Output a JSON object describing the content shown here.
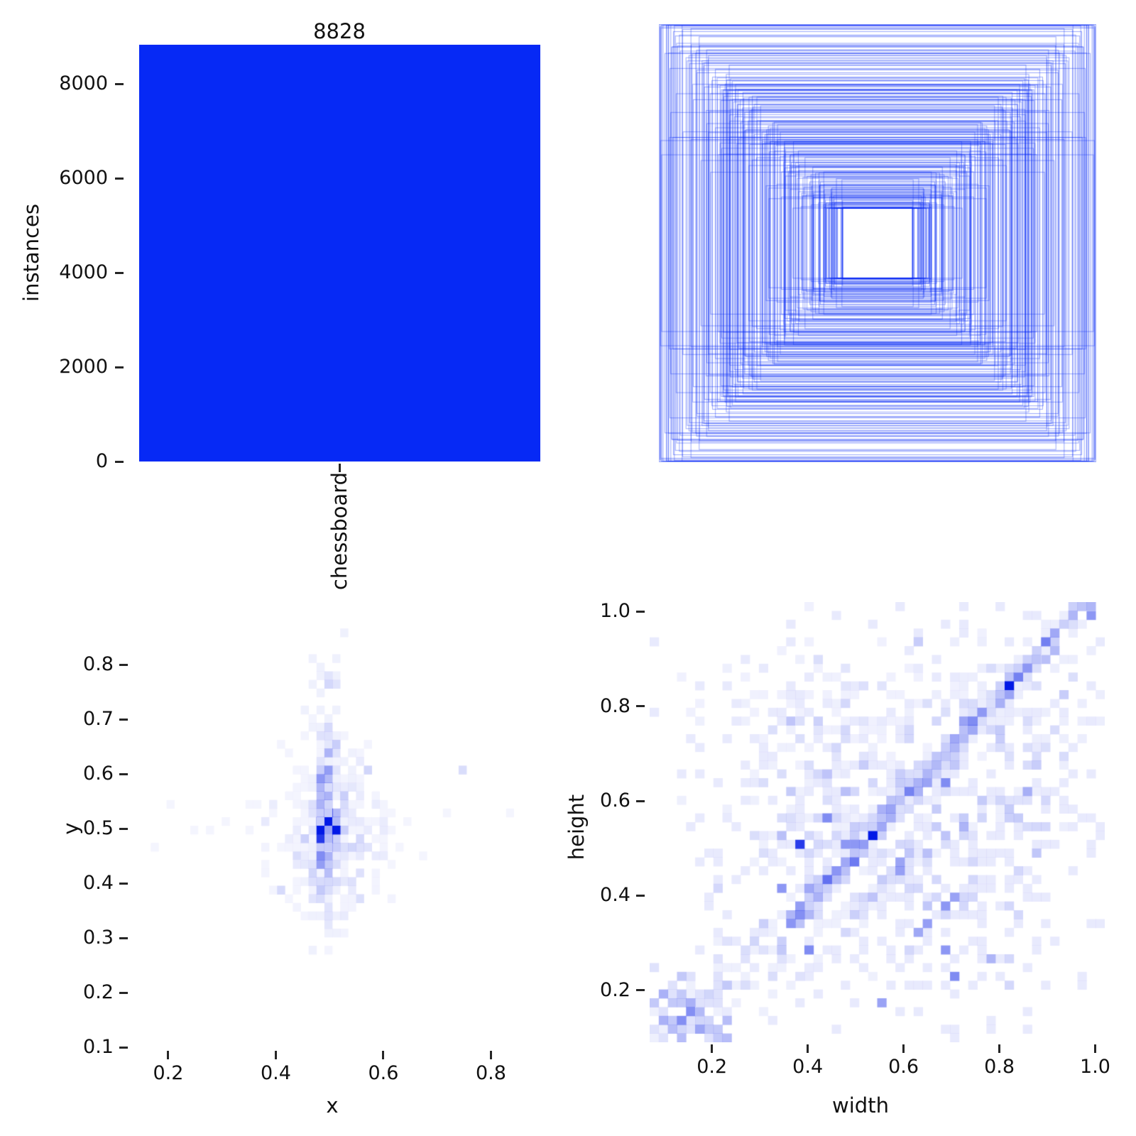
{
  "figure": {
    "background": "#ffffff",
    "accent": "#0629f5"
  },
  "chart_data": [
    {
      "type": "bar",
      "categories": [
        "chessboard"
      ],
      "values": [
        8828
      ],
      "value_labels": [
        "8828"
      ],
      "ylabel": "instances",
      "xlabel": "",
      "yticks": [
        "0",
        "2000",
        "4000",
        "6000",
        "8000"
      ],
      "ylim": [
        0,
        8828
      ],
      "bar_color": "#0629f5",
      "grid": false,
      "legend": "none"
    },
    {
      "type": "boxes-overlay",
      "description": "all bounding boxes drawn at a common center, width/height to scale",
      "box_color": "#0528f5",
      "box_alpha": 0.4,
      "box_count": 260,
      "seed": 11,
      "center": [
        0.5,
        0.5
      ],
      "size_profile": {
        "min_size": 0.16,
        "spread": 0.82,
        "power": 1.25,
        "corr_slope": 1.08,
        "corr_intercept": -0.05,
        "noise": 0.045,
        "uniform_frac": 0.28,
        "max_size": 0.995
      }
    },
    {
      "type": "heatmap",
      "xlabel": "x",
      "ylabel": "y",
      "xticks": [
        "0.2",
        "0.4",
        "0.6",
        "0.8"
      ],
      "yticks": [
        "0.1",
        "0.2",
        "0.3",
        "0.4",
        "0.5",
        "0.6",
        "0.7",
        "0.8"
      ],
      "xlim": [
        0.138,
        0.872
      ],
      "ylim": [
        0.098,
        0.882
      ],
      "bins": [
        50,
        50
      ],
      "heat_color": "#0219e6",
      "max_ref": 6,
      "seed": 42,
      "clusters": [
        {
          "cx": 0.493,
          "cy": 0.507,
          "sx": 0.006,
          "sy": 0.008,
          "n": 60,
          "w": 3.0
        },
        {
          "cx": 0.493,
          "cy": 0.52,
          "sx": 0.01,
          "sy": 0.075,
          "n": 130,
          "w": 0.3
        },
        {
          "cx": 0.497,
          "cy": 0.56,
          "sx": 0.022,
          "sy": 0.13,
          "n": 110,
          "w": 0.28
        },
        {
          "cx": 0.5,
          "cy": 0.5,
          "sx": 0.055,
          "sy": 0.075,
          "n": 150,
          "w": 0.2
        },
        {
          "cx": 0.5,
          "cy": 0.5,
          "sx": 0.16,
          "sy": 0.035,
          "n": 45,
          "w": 0.18
        },
        {
          "cx": 0.5,
          "cy": 0.42,
          "sx": 0.05,
          "sy": 0.045,
          "n": 40,
          "w": 0.22
        }
      ],
      "bands": [],
      "notable_cells": [
        [
          0.493,
          0.507,
          1.0
        ],
        [
          0.493,
          0.522,
          0.55
        ],
        [
          0.507,
          0.52,
          0.28
        ],
        [
          0.493,
          0.492,
          0.4
        ],
        [
          0.493,
          0.477,
          0.3
        ],
        [
          0.493,
          0.462,
          0.22
        ],
        [
          0.479,
          0.507,
          0.22
        ],
        [
          0.507,
          0.507,
          0.3
        ],
        [
          0.493,
          0.537,
          0.22
        ],
        [
          0.493,
          0.552,
          0.18
        ],
        [
          0.493,
          0.582,
          0.15
        ],
        [
          0.74,
          0.6,
          0.15
        ],
        [
          0.565,
          0.615,
          0.18
        ],
        [
          0.55,
          0.37,
          0.14
        ],
        [
          0.405,
          0.39,
          0.16
        ],
        [
          0.44,
          0.445,
          0.15
        ]
      ]
    },
    {
      "type": "heatmap",
      "xlabel": "width",
      "ylabel": "height",
      "xticks": [
        "0.2",
        "0.4",
        "0.6",
        "0.8",
        "1.0"
      ],
      "yticks": [
        "0.2",
        "0.4",
        "0.6",
        "0.8",
        "1.0"
      ],
      "xlim": [
        0.07,
        1.02
      ],
      "ylim": [
        0.09,
        1.02
      ],
      "bins": [
        50,
        50
      ],
      "heat_color": "#0219e6",
      "max_ref": 8,
      "seed": 7,
      "clusters": [
        {
          "cx": 0.62,
          "cy": 0.55,
          "sx": 0.21,
          "sy": 0.21,
          "n": 600,
          "w": 0.55
        },
        {
          "cx": 0.15,
          "cy": 0.16,
          "sx": 0.05,
          "sy": 0.045,
          "n": 70,
          "w": 0.8
        },
        {
          "cx": 0.85,
          "cy": 0.8,
          "sx": 0.1,
          "sy": 0.09,
          "n": 80,
          "w": 0.45
        },
        {
          "cx": 0.45,
          "cy": 0.6,
          "sx": 0.12,
          "sy": 0.12,
          "n": 90,
          "w": 0.4
        },
        {
          "cx": 0.52,
          "cy": 0.78,
          "sx": 0.13,
          "sy": 0.1,
          "n": 80,
          "w": 0.35
        }
      ],
      "bands": [
        {
          "x0": 0.36,
          "y0": 0.34,
          "x1": 1.005,
          "y1": 1.05,
          "sigma": 0.012,
          "n": 330,
          "w": 0.45
        },
        {
          "x0": 0.42,
          "y0": 0.33,
          "x1": 0.86,
          "y1": 0.62,
          "sigma": 0.015,
          "n": 70,
          "w": 0.4
        },
        {
          "x0": 0.1,
          "y0": 0.1,
          "x1": 0.42,
          "y1": 0.38,
          "sigma": 0.05,
          "n": 90,
          "w": 0.4
        }
      ],
      "notable_cells": [
        [
          0.533,
          0.528,
          1.0
        ],
        [
          0.828,
          0.845,
          1.0
        ],
        [
          0.387,
          0.507,
          0.85
        ],
        [
          0.434,
          0.558,
          0.5
        ],
        [
          0.845,
          0.862,
          0.55
        ],
        [
          0.858,
          0.875,
          0.45
        ],
        [
          0.812,
          0.832,
          0.4
        ],
        [
          0.988,
          0.992,
          0.45
        ],
        [
          0.68,
          0.64,
          0.5
        ],
        [
          0.655,
          0.64,
          0.4
        ],
        [
          0.85,
          0.62,
          0.35
        ],
        [
          0.698,
          0.398,
          0.4
        ],
        [
          0.68,
          0.383,
          0.45
        ],
        [
          0.641,
          0.345,
          0.42
        ],
        [
          0.624,
          0.324,
          0.38
        ],
        [
          0.68,
          0.293,
          0.45
        ],
        [
          0.698,
          0.236,
          0.5
        ],
        [
          0.551,
          0.18,
          0.4
        ],
        [
          0.79,
          0.27,
          0.32
        ],
        [
          0.403,
          0.287,
          0.5
        ],
        [
          0.35,
          0.42,
          0.45
        ],
        [
          0.47,
          0.51,
          0.45
        ],
        [
          0.497,
          0.509,
          0.45
        ],
        [
          0.36,
          0.77,
          0.25
        ],
        [
          0.17,
          0.155,
          0.3
        ],
        [
          0.745,
          0.753,
          0.38
        ],
        [
          0.73,
          0.74,
          0.3
        ],
        [
          0.915,
          0.92,
          0.3
        ],
        [
          0.89,
          0.9,
          0.28
        ]
      ]
    }
  ]
}
